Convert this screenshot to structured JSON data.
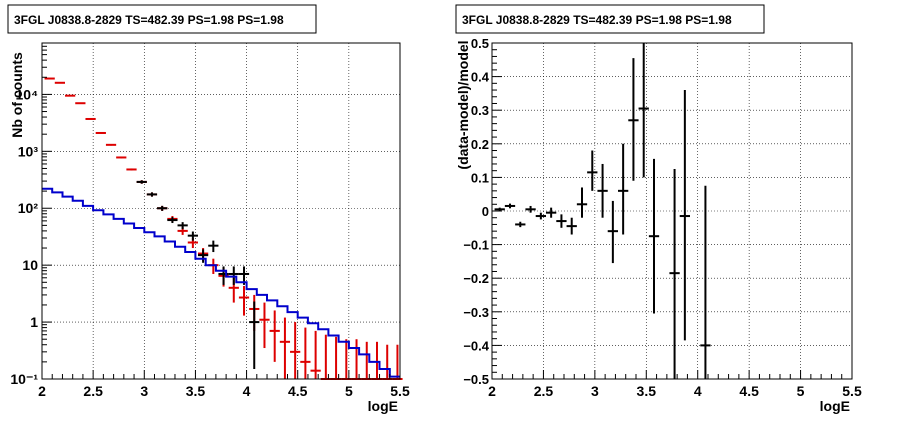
{
  "chart_data": [
    {
      "type": "scatter",
      "title": "3FGL J0838.8-2829 TS=482.39 PS=1.98 PS=1.98",
      "xlabel": "logE",
      "ylabel": "Nb of counts",
      "xlim": [
        2,
        5.5
      ],
      "ylim": [
        0.1,
        80000
      ],
      "yscale": "log",
      "grid": true,
      "x_ticks": [
        2,
        2.5,
        3,
        3.5,
        4,
        4.5,
        5,
        5.5
      ],
      "x_tick_labels": [
        "2",
        "2.5",
        "3",
        "3.5",
        "4",
        "4.5",
        "5",
        "5.5"
      ],
      "y_tick_values": [
        0.1,
        1,
        10,
        100,
        1000,
        10000
      ],
      "y_tick_labels": [
        "10⁻¹",
        "1",
        "10",
        "10²",
        "10³",
        "10⁴"
      ],
      "series": [
        {
          "color": "#dd0000",
          "kind": "errorbars",
          "points": [
            {
              "x": 2.075,
              "y": 19000,
              "lo": 18700,
              "hi": 19300
            },
            {
              "x": 2.175,
              "y": 16000,
              "lo": 15700,
              "hi": 16300
            },
            {
              "x": 2.275,
              "y": 9500,
              "lo": 9300,
              "hi": 9700
            },
            {
              "x": 2.375,
              "y": 7000,
              "lo": 6850,
              "hi": 7150
            },
            {
              "x": 2.475,
              "y": 3700,
              "lo": 3600,
              "hi": 3800
            },
            {
              "x": 2.575,
              "y": 2100,
              "lo": 2050,
              "hi": 2150
            },
            {
              "x": 2.675,
              "y": 1300,
              "lo": 1260,
              "hi": 1340
            },
            {
              "x": 2.775,
              "y": 780,
              "lo": 750,
              "hi": 810
            },
            {
              "x": 2.875,
              "y": 480,
              "lo": 460,
              "hi": 500
            },
            {
              "x": 2.975,
              "y": 290,
              "lo": 270,
              "hi": 310
            },
            {
              "x": 3.075,
              "y": 175,
              "lo": 160,
              "hi": 190
            },
            {
              "x": 3.175,
              "y": 100,
              "lo": 90,
              "hi": 110
            },
            {
              "x": 3.275,
              "y": 65,
              "lo": 57,
              "hi": 73
            },
            {
              "x": 3.375,
              "y": 40,
              "lo": 34,
              "hi": 47
            },
            {
              "x": 3.475,
              "y": 25,
              "lo": 20,
              "hi": 30
            },
            {
              "x": 3.575,
              "y": 16,
              "lo": 12,
              "hi": 20
            },
            {
              "x": 3.675,
              "y": 10,
              "lo": 7,
              "hi": 13
            },
            {
              "x": 3.775,
              "y": 6.5,
              "lo": 4.2,
              "hi": 9
            },
            {
              "x": 3.875,
              "y": 4,
              "lo": 2.2,
              "hi": 6
            },
            {
              "x": 3.975,
              "y": 2.7,
              "lo": 1.3,
              "hi": 4.3
            },
            {
              "x": 4.075,
              "y": 1.7,
              "lo": 0.7,
              "hi": 3
            },
            {
              "x": 4.175,
              "y": 1.1,
              "lo": 0.35,
              "hi": 2.2
            },
            {
              "x": 4.275,
              "y": 0.7,
              "lo": 0.2,
              "hi": 1.6
            },
            {
              "x": 4.375,
              "y": 0.45,
              "lo": 0.1,
              "hi": 1.2
            },
            {
              "x": 4.475,
              "y": 0.3,
              "lo": 0.1,
              "hi": 1.0
            },
            {
              "x": 4.575,
              "y": 0.2,
              "lo": 0.1,
              "hi": 0.8
            },
            {
              "x": 4.675,
              "y": 0.14,
              "lo": 0.1,
              "hi": 0.7
            },
            {
              "x": 4.775,
              "y": 0.1,
              "lo": 0.1,
              "hi": 0.6
            },
            {
              "x": 4.875,
              "y": 0.1,
              "lo": 0.1,
              "hi": 0.55
            },
            {
              "x": 4.975,
              "y": 0.1,
              "lo": 0.1,
              "hi": 0.5
            },
            {
              "x": 5.075,
              "y": 0.1,
              "lo": 0.1,
              "hi": 0.5
            },
            {
              "x": 5.175,
              "y": 0.1,
              "lo": 0.1,
              "hi": 0.45
            },
            {
              "x": 5.275,
              "y": 0.1,
              "lo": 0.1,
              "hi": 0.45
            },
            {
              "x": 5.375,
              "y": 0.1,
              "lo": 0.1,
              "hi": 0.4
            },
            {
              "x": 5.475,
              "y": 0.1,
              "lo": 0.1,
              "hi": 0.4
            }
          ]
        },
        {
          "color": "#000000",
          "kind": "errorbars",
          "points": [
            {
              "x": 2.975,
              "y": 290,
              "lo": 270,
              "hi": 310
            },
            {
              "x": 3.075,
              "y": 175,
              "lo": 160,
              "hi": 190
            },
            {
              "x": 3.175,
              "y": 100,
              "lo": 90,
              "hi": 110
            },
            {
              "x": 3.275,
              "y": 62,
              "lo": 55,
              "hi": 70
            },
            {
              "x": 3.375,
              "y": 50,
              "lo": 43,
              "hi": 57
            },
            {
              "x": 3.475,
              "y": 33,
              "lo": 27,
              "hi": 39
            },
            {
              "x": 3.575,
              "y": 15,
              "lo": 11,
              "hi": 19
            },
            {
              "x": 3.675,
              "y": 22,
              "lo": 17,
              "hi": 27
            },
            {
              "x": 3.775,
              "y": 7,
              "lo": 4.5,
              "hi": 9.5
            },
            {
              "x": 3.875,
              "y": 7,
              "lo": 4.5,
              "hi": 9.5
            },
            {
              "x": 3.975,
              "y": 7,
              "lo": 4.5,
              "hi": 9.5
            },
            {
              "x": 4.075,
              "y": 1,
              "lo": 0.15,
              "hi": 2.3
            }
          ]
        },
        {
          "color": "#0000cc",
          "kind": "step",
          "x_edges": [
            2.0,
            2.1,
            2.2,
            2.3,
            2.4,
            2.5,
            2.6,
            2.7,
            2.8,
            2.9,
            3.0,
            3.1,
            3.2,
            3.3,
            3.4,
            3.5,
            3.6,
            3.7,
            3.8,
            3.9,
            4.0,
            4.1,
            4.2,
            4.3,
            4.4,
            4.5,
            4.6,
            4.7,
            4.8,
            4.9,
            5.0,
            5.1,
            5.2,
            5.3,
            5.4,
            5.5
          ],
          "values": [
            220,
            190,
            160,
            135,
            110,
            92,
            78,
            65,
            54,
            45,
            38,
            32,
            26,
            21,
            17,
            13,
            10,
            8,
            6.3,
            5,
            3.8,
            3,
            2.4,
            1.9,
            1.5,
            1.2,
            0.95,
            0.75,
            0.58,
            0.45,
            0.35,
            0.27,
            0.2,
            0.15,
            0.11
          ]
        }
      ]
    },
    {
      "type": "scatter",
      "title": "3FGL J0838.8-2829 TS=482.39 PS=1.98 PS=1.98",
      "xlabel": "logE",
      "ylabel": "(data-model)/model",
      "xlim": [
        2,
        5.5
      ],
      "ylim": [
        -0.5,
        0.5
      ],
      "grid": true,
      "x_ticks": [
        2,
        2.5,
        3,
        3.5,
        4,
        4.5,
        5,
        5.5
      ],
      "x_tick_labels": [
        "2",
        "2.5",
        "3",
        "3.5",
        "4",
        "4.5",
        "5",
        "5.5"
      ],
      "y_ticks": [
        -0.5,
        -0.4,
        -0.3,
        -0.2,
        -0.1,
        0,
        0.1,
        0.2,
        0.3,
        0.4,
        0.5
      ],
      "y_tick_labels": [
        "−0.5",
        "−0.4",
        "−0.3",
        "−0.2",
        "−0.1",
        "0",
        "0.1",
        "0.2",
        "0.3",
        "0.4",
        "0.5"
      ],
      "series": [
        {
          "color": "#000000",
          "kind": "errorbars",
          "points": [
            {
              "x": 2.075,
              "y": 0.005,
              "lo": 0.0,
              "hi": 0.01
            },
            {
              "x": 2.175,
              "y": 0.015,
              "lo": 0.008,
              "hi": 0.022
            },
            {
              "x": 2.275,
              "y": -0.04,
              "lo": -0.048,
              "hi": -0.032
            },
            {
              "x": 2.375,
              "y": 0.005,
              "lo": -0.005,
              "hi": 0.015
            },
            {
              "x": 2.475,
              "y": -0.015,
              "lo": -0.025,
              "hi": -0.005
            },
            {
              "x": 2.575,
              "y": -0.005,
              "lo": -0.02,
              "hi": 0.01
            },
            {
              "x": 2.675,
              "y": -0.03,
              "lo": -0.05,
              "hi": -0.01
            },
            {
              "x": 2.775,
              "y": -0.045,
              "lo": -0.07,
              "hi": -0.02
            },
            {
              "x": 2.875,
              "y": 0.02,
              "lo": -0.02,
              "hi": 0.07
            },
            {
              "x": 2.975,
              "y": 0.115,
              "lo": 0.06,
              "hi": 0.18
            },
            {
              "x": 3.075,
              "y": 0.06,
              "lo": -0.02,
              "hi": 0.14
            },
            {
              "x": 3.175,
              "y": -0.06,
              "lo": -0.155,
              "hi": 0.03
            },
            {
              "x": 3.275,
              "y": 0.06,
              "lo": -0.07,
              "hi": 0.2
            },
            {
              "x": 3.375,
              "y": 0.27,
              "lo": 0.09,
              "hi": 0.455
            },
            {
              "x": 3.475,
              "y": 0.305,
              "lo": 0.1,
              "hi": 0.5
            },
            {
              "x": 3.575,
              "y": -0.075,
              "lo": -0.305,
              "hi": 0.155
            },
            {
              "x": 3.775,
              "y": -0.185,
              "lo": -0.5,
              "hi": 0.125
            },
            {
              "x": 3.875,
              "y": -0.015,
              "lo": -0.385,
              "hi": 0.36
            },
            {
              "x": 4.075,
              "y": -0.4,
              "lo": -0.5,
              "hi": 0.075
            }
          ]
        }
      ]
    }
  ]
}
